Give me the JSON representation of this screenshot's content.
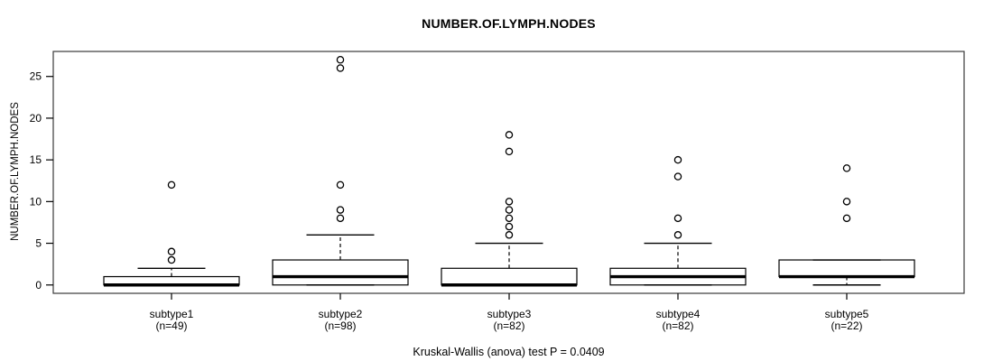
{
  "title": "NUMBER.OF.LYMPH.NODES",
  "y_axis_label": "NUMBER.OF.LYMPH.NODES",
  "caption": "Kruskal-Wallis (anova) test P = 0.0409",
  "colors": {
    "background": "#ffffff",
    "frame": "#3a3a3a",
    "box_stroke": "#000000",
    "box_fill": "#ffffff",
    "median": "#000000",
    "outlier_stroke": "#000000",
    "text": "#000000"
  },
  "chart_data": {
    "type": "boxplot",
    "title": "NUMBER.OF.LYMPH.NODES",
    "ylabel": "NUMBER.OF.LYMPH.NODES",
    "annotation": "Kruskal-Wallis (anova) test P = 0.0409",
    "grid": false,
    "legend": "none",
    "ylim": [
      -1,
      28
    ],
    "yticks": [
      0,
      5,
      10,
      15,
      20,
      25
    ],
    "categories": [
      "subtype1",
      "subtype2",
      "subtype3",
      "subtype4",
      "subtype5"
    ],
    "sample_sizes": [
      49,
      98,
      82,
      82,
      22
    ],
    "groups": [
      {
        "label": "subtype1",
        "sublabel": "(n=49)",
        "n": 49,
        "q1": 0,
        "median": 0,
        "q3": 1,
        "whisker_low": 0,
        "whisker_high": 2,
        "outliers": [
          3,
          4,
          12
        ]
      },
      {
        "label": "subtype2",
        "sublabel": "(n=98)",
        "n": 98,
        "q1": 0,
        "median": 1,
        "q3": 3,
        "whisker_low": 0,
        "whisker_high": 6,
        "outliers": [
          8,
          9,
          12,
          26,
          27
        ]
      },
      {
        "label": "subtype3",
        "sublabel": "(n=82)",
        "n": 82,
        "q1": 0,
        "median": 0,
        "q3": 2,
        "whisker_low": 0,
        "whisker_high": 5,
        "outliers": [
          6,
          7,
          8,
          9,
          10,
          16,
          18
        ]
      },
      {
        "label": "subtype4",
        "sublabel": "(n=82)",
        "n": 82,
        "q1": 0,
        "median": 1,
        "q3": 2,
        "whisker_low": 0,
        "whisker_high": 5,
        "outliers": [
          6,
          8,
          13,
          15
        ]
      },
      {
        "label": "subtype5",
        "sublabel": "(n=22)",
        "n": 22,
        "q1": 1,
        "median": 1,
        "q3": 3,
        "whisker_low": 0,
        "whisker_high": 3,
        "outliers": [
          8,
          10,
          14
        ]
      }
    ]
  }
}
